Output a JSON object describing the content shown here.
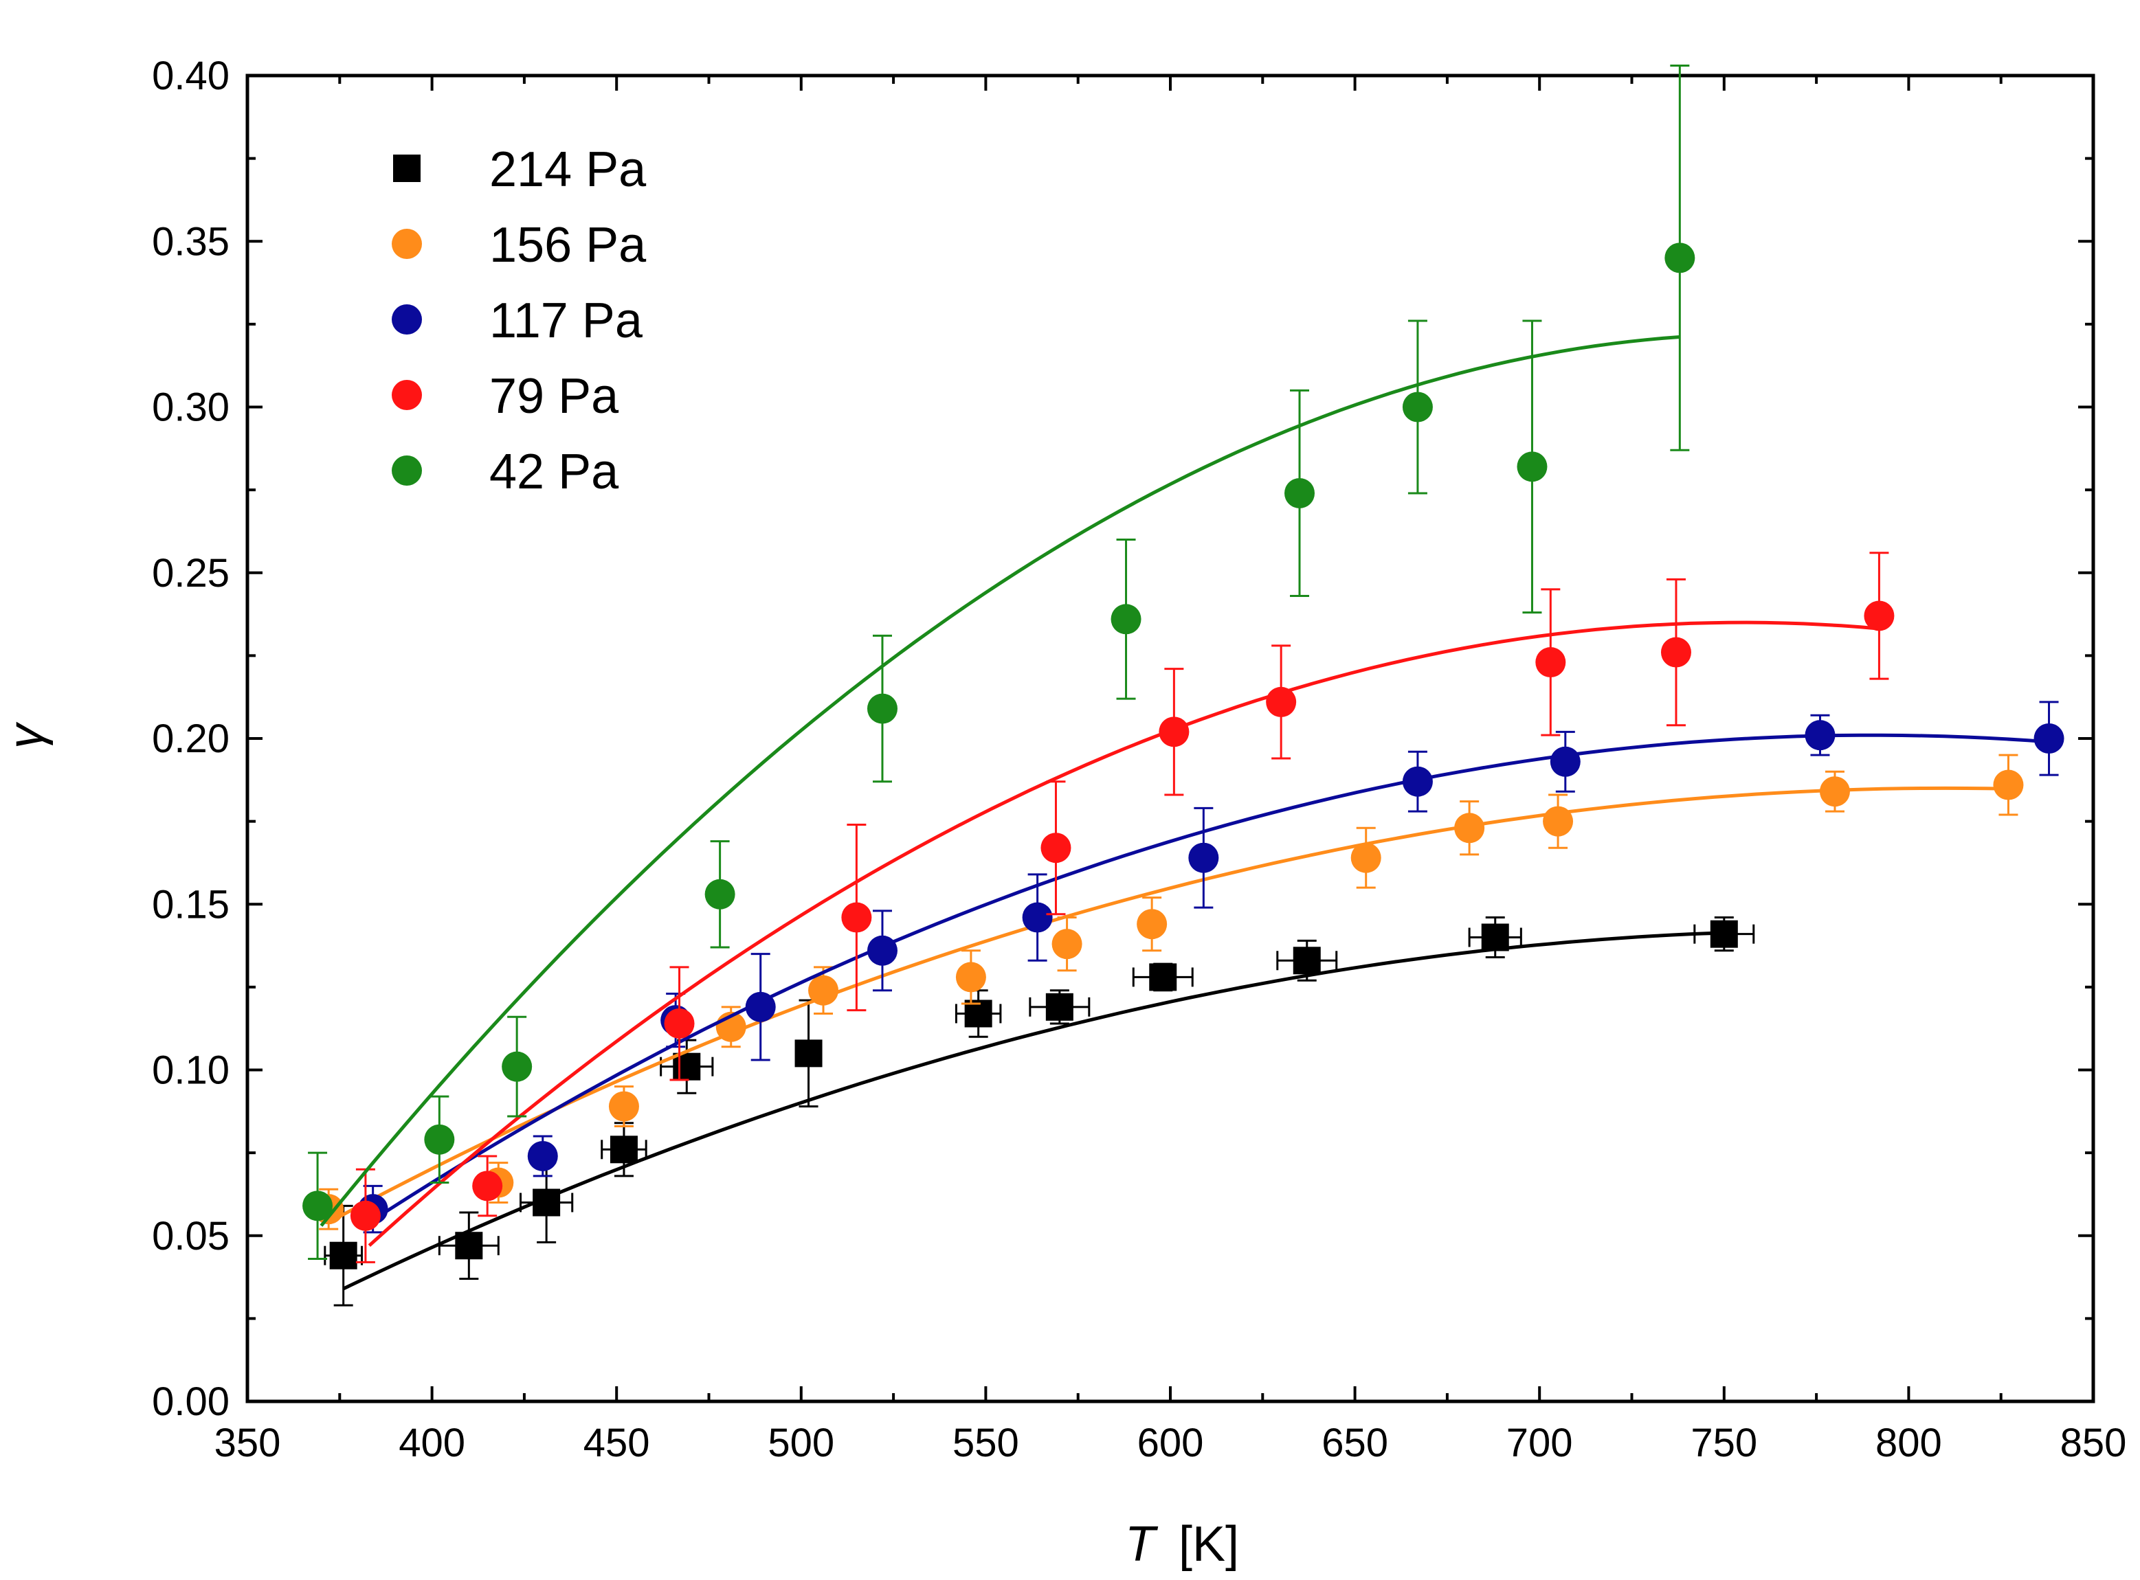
{
  "chart_data": {
    "type": "scatter",
    "title": "",
    "xlabel": "T",
    "xlabel_unit": "[K]",
    "ylabel": "γ",
    "xlim": [
      350,
      850
    ],
    "ylim": [
      0.0,
      0.4
    ],
    "x_ticks": [
      "350",
      "400",
      "450",
      "500",
      "550",
      "600",
      "650",
      "700",
      "750",
      "800",
      "850"
    ],
    "y_ticks": [
      "0.00",
      "0.05",
      "0.10",
      "0.15",
      "0.20",
      "0.25",
      "0.30",
      "0.35",
      "0.40"
    ],
    "grid": false,
    "legend_position": "top-left",
    "series": [
      {
        "name": "214 Pa",
        "color": "#000000",
        "marker": "square",
        "points": [
          {
            "x": 376,
            "y": 0.044,
            "yerr": 0.015,
            "xerr": 5
          },
          {
            "x": 410,
            "y": 0.047,
            "yerr": 0.01,
            "xerr": 8
          },
          {
            "x": 431,
            "y": 0.06,
            "yerr": 0.012,
            "xerr": 7
          },
          {
            "x": 452,
            "y": 0.076,
            "yerr": 0.008,
            "xerr": 6
          },
          {
            "x": 469,
            "y": 0.101,
            "yerr": 0.008,
            "xerr": 7
          },
          {
            "x": 502,
            "y": 0.105,
            "yerr": 0.016,
            "xerr": 0
          },
          {
            "x": 548,
            "y": 0.117,
            "yerr": 0.007,
            "xerr": 6
          },
          {
            "x": 570,
            "y": 0.119,
            "yerr": 0.005,
            "xerr": 8
          },
          {
            "x": 598,
            "y": 0.128,
            "yerr": 0.004,
            "xerr": 8
          },
          {
            "x": 637,
            "y": 0.133,
            "yerr": 0.006,
            "xerr": 8
          },
          {
            "x": 688,
            "y": 0.14,
            "yerr": 0.006,
            "xerr": 7
          },
          {
            "x": 750,
            "y": 0.141,
            "yerr": 0.005,
            "xerr": 8
          }
        ],
        "fit": {
          "x_start": 376,
          "x_end": 750,
          "y_start": 0.034,
          "peak_x": 780,
          "peak_y": 0.142
        }
      },
      {
        "name": "156 Pa",
        "color": "#ff8c1a",
        "marker": "circle",
        "points": [
          {
            "x": 372,
            "y": 0.058,
            "yerr": 0.006
          },
          {
            "x": 418,
            "y": 0.066,
            "yerr": 0.006
          },
          {
            "x": 452,
            "y": 0.089,
            "yerr": 0.006
          },
          {
            "x": 481,
            "y": 0.113,
            "yerr": 0.006
          },
          {
            "x": 506,
            "y": 0.124,
            "yerr": 0.007
          },
          {
            "x": 546,
            "y": 0.128,
            "yerr": 0.008
          },
          {
            "x": 572,
            "y": 0.138,
            "yerr": 0.008
          },
          {
            "x": 595,
            "y": 0.144,
            "yerr": 0.008
          },
          {
            "x": 653,
            "y": 0.164,
            "yerr": 0.009
          },
          {
            "x": 681,
            "y": 0.173,
            "yerr": 0.008
          },
          {
            "x": 705,
            "y": 0.175,
            "yerr": 0.008
          },
          {
            "x": 780,
            "y": 0.184,
            "yerr": 0.006
          },
          {
            "x": 827,
            "y": 0.186,
            "yerr": 0.009
          }
        ],
        "fit": {
          "x_start": 372,
          "x_end": 827,
          "y_start": 0.054,
          "peak_x": 810,
          "peak_y": 0.185
        }
      },
      {
        "name": "117 Pa",
        "color": "#0a0a9a",
        "marker": "circle",
        "points": [
          {
            "x": 384,
            "y": 0.058,
            "yerr": 0.007
          },
          {
            "x": 430,
            "y": 0.074,
            "yerr": 0.006
          },
          {
            "x": 466,
            "y": 0.115,
            "yerr": 0.008
          },
          {
            "x": 489,
            "y": 0.119,
            "yerr": 0.016
          },
          {
            "x": 522,
            "y": 0.136,
            "yerr": 0.012
          },
          {
            "x": 564,
            "y": 0.146,
            "yerr": 0.013
          },
          {
            "x": 609,
            "y": 0.164,
            "yerr": 0.015
          },
          {
            "x": 667,
            "y": 0.187,
            "yerr": 0.009
          },
          {
            "x": 707,
            "y": 0.193,
            "yerr": 0.009
          },
          {
            "x": 776,
            "y": 0.201,
            "yerr": 0.006
          },
          {
            "x": 838,
            "y": 0.2,
            "yerr": 0.011
          }
        ],
        "fit": {
          "x_start": 383,
          "x_end": 838,
          "y_start": 0.054,
          "peak_x": 790,
          "peak_y": 0.201
        }
      },
      {
        "name": "79 Pa",
        "color": "#ff1414",
        "marker": "circle",
        "points": [
          {
            "x": 382,
            "y": 0.056,
            "yerr": 0.014
          },
          {
            "x": 415,
            "y": 0.065,
            "yerr": 0.009
          },
          {
            "x": 467,
            "y": 0.114,
            "yerr": 0.017
          },
          {
            "x": 515,
            "y": 0.146,
            "yerr": 0.028
          },
          {
            "x": 569,
            "y": 0.167,
            "yerr": 0.02
          },
          {
            "x": 601,
            "y": 0.202,
            "yerr": 0.019
          },
          {
            "x": 630,
            "y": 0.211,
            "yerr": 0.017
          },
          {
            "x": 703,
            "y": 0.223,
            "yerr": 0.022
          },
          {
            "x": 737,
            "y": 0.226,
            "yerr": 0.022
          },
          {
            "x": 792,
            "y": 0.237,
            "yerr": 0.019
          }
        ],
        "fit": {
          "x_start": 383,
          "x_end": 792,
          "y_start": 0.047,
          "peak_x": 755,
          "peak_y": 0.235
        }
      },
      {
        "name": "42 Pa",
        "color": "#1a8a1a",
        "marker": "circle",
        "points": [
          {
            "x": 369,
            "y": 0.059,
            "yerr": 0.016
          },
          {
            "x": 402,
            "y": 0.079,
            "yerr": 0.013
          },
          {
            "x": 423,
            "y": 0.101,
            "yerr": 0.015
          },
          {
            "x": 478,
            "y": 0.153,
            "yerr": 0.016
          },
          {
            "x": 522,
            "y": 0.209,
            "yerr": 0.022
          },
          {
            "x": 588,
            "y": 0.236,
            "yerr": 0.024
          },
          {
            "x": 635,
            "y": 0.274,
            "yerr": 0.031
          },
          {
            "x": 667,
            "y": 0.3,
            "yerr": 0.026
          },
          {
            "x": 698,
            "y": 0.282,
            "yerr": 0.044
          },
          {
            "x": 738,
            "y": 0.345,
            "yerr": 0.058
          }
        ],
        "fit": {
          "x_start": 370,
          "x_end": 738,
          "y_start": 0.053,
          "peak_x": 760,
          "peak_y": 0.322
        }
      }
    ]
  }
}
